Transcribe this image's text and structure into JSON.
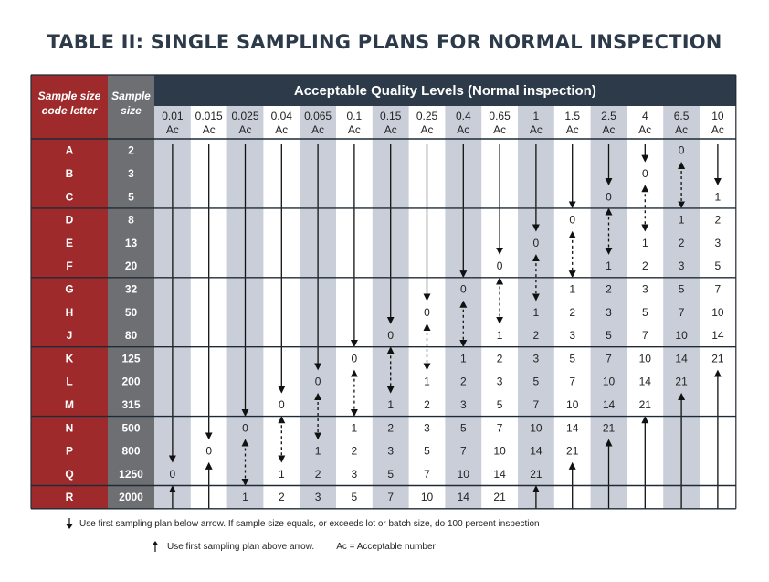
{
  "title": "TABLE II: SINGLE SAMPLING PLANS FOR NORMAL INSPECTION",
  "headers": {
    "code_letter": [
      "Sample size",
      "code letter"
    ],
    "sample_size": [
      "Sample",
      "size"
    ],
    "aql_group": "Acceptable Quality Levels (Normal inspection)",
    "ac_label": "Ac"
  },
  "aql_levels": [
    "0.01",
    "0.015",
    "0.025",
    "0.04",
    "0.065",
    "0.1",
    "0.15",
    "0.25",
    "0.4",
    "0.65",
    "1",
    "1.5",
    "2.5",
    "4",
    "6.5",
    "10"
  ],
  "rows": [
    {
      "code": "A",
      "size": "2"
    },
    {
      "code": "B",
      "size": "3"
    },
    {
      "code": "C",
      "size": "5"
    },
    {
      "code": "D",
      "size": "8"
    },
    {
      "code": "E",
      "size": "13"
    },
    {
      "code": "F",
      "size": "20"
    },
    {
      "code": "G",
      "size": "32"
    },
    {
      "code": "H",
      "size": "50"
    },
    {
      "code": "J",
      "size": "80"
    },
    {
      "code": "K",
      "size": "125"
    },
    {
      "code": "L",
      "size": "200"
    },
    {
      "code": "M",
      "size": "315"
    },
    {
      "code": "N",
      "size": "500"
    },
    {
      "code": "P",
      "size": "800"
    },
    {
      "code": "Q",
      "size": "1250"
    },
    {
      "code": "R",
      "size": "2000"
    }
  ],
  "acceptance_numbers": [
    [
      "",
      "",
      "",
      "",
      "",
      "",
      "",
      "",
      "",
      "",
      "",
      "",
      "",
      "",
      "0",
      ""
    ],
    [
      "",
      "",
      "",
      "",
      "",
      "",
      "",
      "",
      "",
      "",
      "",
      "",
      "",
      "0",
      "",
      ""
    ],
    [
      "",
      "",
      "",
      "",
      "",
      "",
      "",
      "",
      "",
      "",
      "",
      "",
      "0",
      "",
      "",
      "1"
    ],
    [
      "",
      "",
      "",
      "",
      "",
      "",
      "",
      "",
      "",
      "",
      "",
      "0",
      "",
      "",
      "1",
      "2"
    ],
    [
      "",
      "",
      "",
      "",
      "",
      "",
      "",
      "",
      "",
      "",
      "0",
      "",
      "",
      "1",
      "2",
      "3"
    ],
    [
      "",
      "",
      "",
      "",
      "",
      "",
      "",
      "",
      "",
      "0",
      "",
      "",
      "1",
      "2",
      "3",
      "5"
    ],
    [
      "",
      "",
      "",
      "",
      "",
      "",
      "",
      "",
      "0",
      "",
      "",
      "1",
      "2",
      "3",
      "5",
      "7"
    ],
    [
      "",
      "",
      "",
      "",
      "",
      "",
      "",
      "0",
      "",
      "",
      "1",
      "2",
      "3",
      "5",
      "7",
      "10"
    ],
    [
      "",
      "",
      "",
      "",
      "",
      "",
      "0",
      "",
      "",
      "1",
      "2",
      "3",
      "5",
      "7",
      "10",
      "14"
    ],
    [
      "",
      "",
      "",
      "",
      "",
      "0",
      "",
      "",
      "1",
      "2",
      "3",
      "5",
      "7",
      "10",
      "14",
      "21"
    ],
    [
      "",
      "",
      "",
      "",
      "0",
      "",
      "",
      "1",
      "2",
      "3",
      "5",
      "7",
      "10",
      "14",
      "21",
      ""
    ],
    [
      "",
      "",
      "",
      "0",
      "",
      "",
      "1",
      "2",
      "3",
      "5",
      "7",
      "10",
      "14",
      "21",
      "",
      ""
    ],
    [
      "",
      "",
      "0",
      "",
      "",
      "1",
      "2",
      "3",
      "5",
      "7",
      "10",
      "14",
      "21",
      "",
      "",
      ""
    ],
    [
      "",
      "0",
      "",
      "",
      "1",
      "2",
      "3",
      "5",
      "7",
      "10",
      "14",
      "21",
      "",
      "",
      "",
      ""
    ],
    [
      "0",
      "",
      "",
      "1",
      "2",
      "3",
      "5",
      "7",
      "10",
      "14",
      "21",
      "",
      "",
      "",
      "",
      ""
    ],
    [
      "",
      "",
      "1",
      "2",
      "3",
      "5",
      "7",
      "10",
      "14",
      "21",
      "",
      "",
      "",
      "",
      "",
      ""
    ]
  ],
  "arrows": [
    {
      "col": 0,
      "kind": "down",
      "from": 0,
      "to": 13
    },
    {
      "col": 0,
      "kind": "up",
      "from": 15,
      "to": 15
    },
    {
      "col": 1,
      "kind": "down",
      "from": 0,
      "to": 12
    },
    {
      "col": 1,
      "kind": "up",
      "from": 14,
      "to": 15
    },
    {
      "col": 2,
      "kind": "down",
      "from": 0,
      "to": 11
    },
    {
      "col": 2,
      "kind": "dashed",
      "from": 13,
      "to": 14
    },
    {
      "col": 3,
      "kind": "down",
      "from": 0,
      "to": 10
    },
    {
      "col": 3,
      "kind": "dashed",
      "from": 12,
      "to": 13
    },
    {
      "col": 4,
      "kind": "down",
      "from": 0,
      "to": 9
    },
    {
      "col": 4,
      "kind": "dashed",
      "from": 11,
      "to": 12
    },
    {
      "col": 5,
      "kind": "down",
      "from": 0,
      "to": 8
    },
    {
      "col": 5,
      "kind": "dashed",
      "from": 10,
      "to": 11
    },
    {
      "col": 6,
      "kind": "down",
      "from": 0,
      "to": 7
    },
    {
      "col": 6,
      "kind": "dashed",
      "from": 9,
      "to": 10
    },
    {
      "col": 7,
      "kind": "down",
      "from": 0,
      "to": 6
    },
    {
      "col": 7,
      "kind": "dashed",
      "from": 8,
      "to": 9
    },
    {
      "col": 8,
      "kind": "down",
      "from": 0,
      "to": 5
    },
    {
      "col": 8,
      "kind": "dashed",
      "from": 7,
      "to": 8
    },
    {
      "col": 9,
      "kind": "down",
      "from": 0,
      "to": 4
    },
    {
      "col": 9,
      "kind": "dashed",
      "from": 6,
      "to": 7
    },
    {
      "col": 10,
      "kind": "down",
      "from": 0,
      "to": 3
    },
    {
      "col": 10,
      "kind": "dashed",
      "from": 5,
      "to": 6
    },
    {
      "col": 10,
      "kind": "up",
      "from": 15,
      "to": 15
    },
    {
      "col": 11,
      "kind": "down",
      "from": 0,
      "to": 2
    },
    {
      "col": 11,
      "kind": "dashed",
      "from": 4,
      "to": 5
    },
    {
      "col": 11,
      "kind": "up",
      "from": 14,
      "to": 15
    },
    {
      "col": 12,
      "kind": "down",
      "from": 0,
      "to": 1
    },
    {
      "col": 12,
      "kind": "dashed",
      "from": 3,
      "to": 4
    },
    {
      "col": 12,
      "kind": "up",
      "from": 13,
      "to": 15
    },
    {
      "col": 13,
      "kind": "down",
      "from": 0,
      "to": 0
    },
    {
      "col": 13,
      "kind": "dashed",
      "from": 2,
      "to": 3
    },
    {
      "col": 13,
      "kind": "up",
      "from": 12,
      "to": 15
    },
    {
      "col": 14,
      "kind": "dashed",
      "from": 1,
      "to": 2
    },
    {
      "col": 14,
      "kind": "up",
      "from": 11,
      "to": 15
    },
    {
      "col": 15,
      "kind": "down",
      "from": 0,
      "to": 1
    },
    {
      "col": 15,
      "kind": "up",
      "from": 10,
      "to": 15
    }
  ],
  "legend": {
    "down_text": "Use first sampling plan below arrow. If sample size equals, or exceeds lot or batch size, do 100 percent inspection",
    "up_text": "Use first sampling plan above arrow.",
    "ac_text": "Ac = Acceptable number"
  },
  "colors": {
    "title": "#2c3a49",
    "header_dark": "#2c3a49",
    "code_column": "#9e2a2b",
    "size_column": "#6d6f73",
    "band": "#c9ced8",
    "rule": "#1f2b36"
  }
}
